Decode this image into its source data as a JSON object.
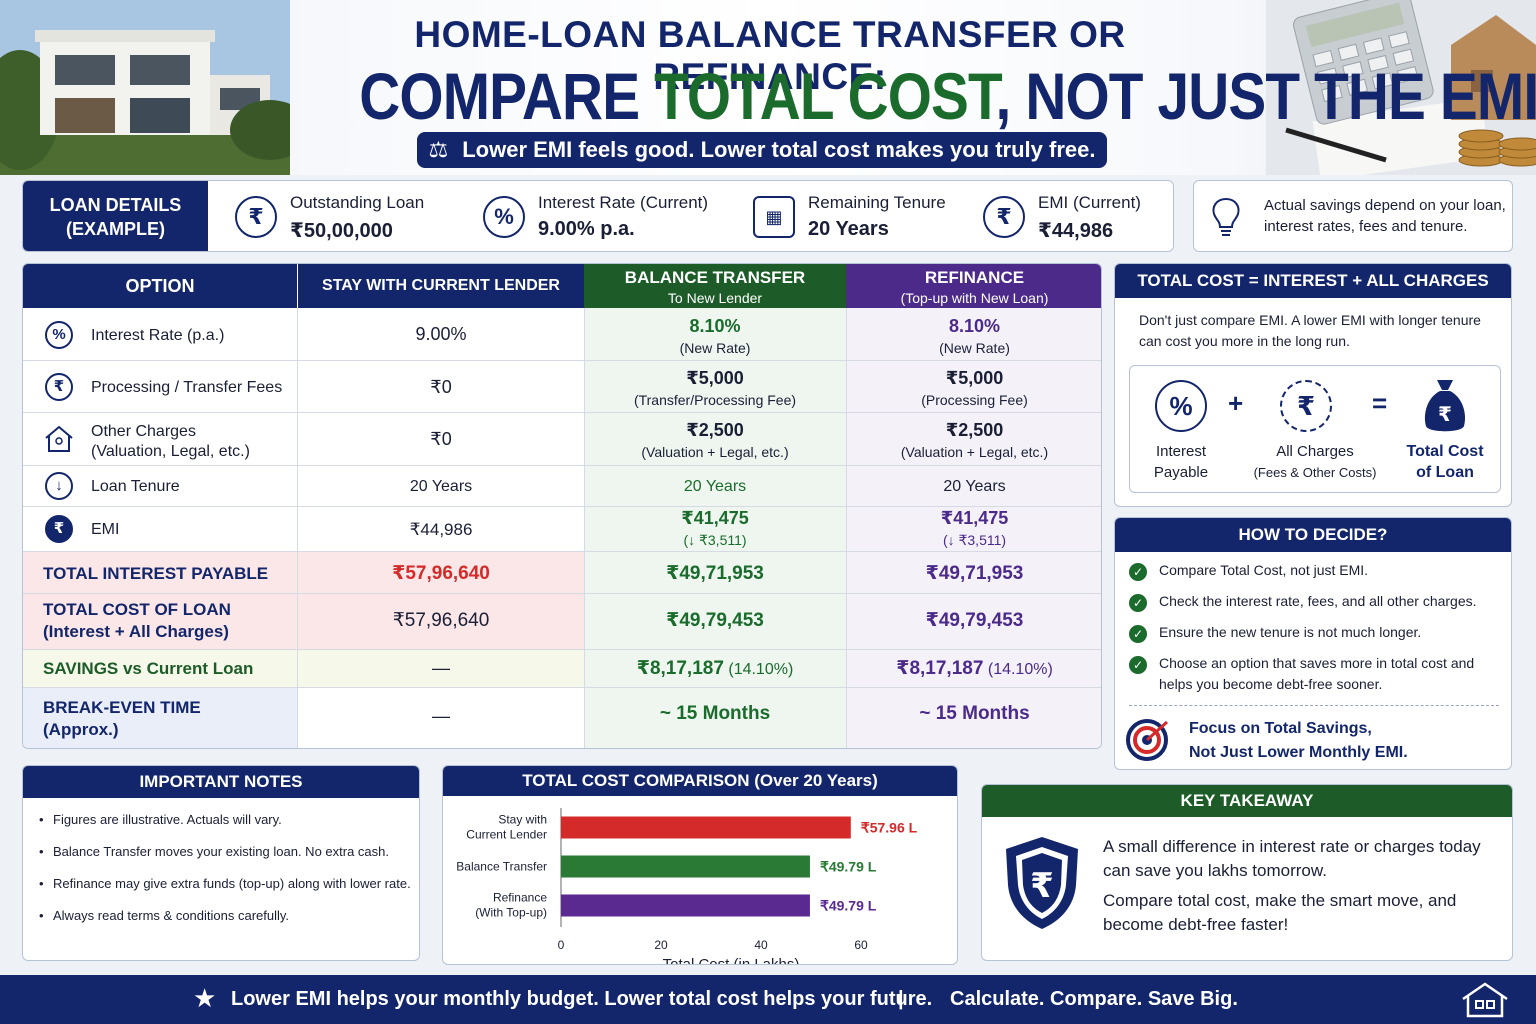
{
  "header": {
    "title_line1": "HOME-LOAN BALANCE TRANSFER OR REFINANCE:",
    "title_line2_a": "COMPARE ",
    "title_line2_b": "TOTAL COST",
    "title_line2_c": ", NOT JUST THE EMI",
    "tagline": "Lower EMI feels good. Lower total cost makes you truly free."
  },
  "loan_details": {
    "label": "LOAN DETAILS (EXAMPLE)",
    "items": [
      {
        "icon": "rupee-icon",
        "label": "Outstanding Loan",
        "value": "₹50,00,000"
      },
      {
        "icon": "percent-icon",
        "label": "Interest Rate (Current)",
        "value": "9.00% p.a."
      },
      {
        "icon": "calendar-icon",
        "label": "Remaining Tenure",
        "value": "20 Years"
      },
      {
        "icon": "rupee-clock-icon",
        "label": "EMI (Current)",
        "value": "₹44,986"
      }
    ],
    "tip": "Actual savings depend on your loan, interest rates, fees and tenure."
  },
  "table": {
    "headers": {
      "option": "OPTION",
      "stay": "STAY WITH CURRENT LENDER",
      "bt_title": "BALANCE TRANSFER",
      "bt_sub": "To New Lender",
      "rf_title": "REFINANCE",
      "rf_sub": "(Top-up with New Loan)"
    },
    "rows": [
      {
        "label": "Interest Rate (p.a.)",
        "stay": "9.00%",
        "bt": "8.10%",
        "bt_sub": "(New Rate)",
        "rf": "8.10%",
        "rf_sub": "(New Rate)"
      },
      {
        "label": "Processing / Transfer Fees",
        "stay": "₹0",
        "bt": "₹5,000",
        "bt_sub": "(Transfer/Processing Fee)",
        "rf": "₹5,000",
        "rf_sub": "(Processing Fee)"
      },
      {
        "label": "Other Charges",
        "label2": "(Valuation, Legal, etc.)",
        "stay": "₹0",
        "bt": "₹2,500",
        "bt_sub": "(Valuation + Legal, etc.)",
        "rf": "₹2,500",
        "rf_sub": "(Valuation + Legal, etc.)"
      },
      {
        "label": "Loan Tenure",
        "stay": "20 Years",
        "bt": "20 Years",
        "rf": "20 Years"
      },
      {
        "label": "EMI",
        "stay": "₹44,986",
        "bt": "₹41,475",
        "bt_sub": "(↓ ₹3,511)",
        "rf": "₹41,475",
        "rf_sub": "(↓ ₹3,511)"
      }
    ],
    "total_interest": {
      "label": "TOTAL INTEREST PAYABLE",
      "stay": "₹57,96,640",
      "bt": "₹49,71,953",
      "rf": "₹49,71,953"
    },
    "total_cost": {
      "label": "TOTAL COST OF LOAN",
      "label2": "(Interest + All Charges)",
      "stay": "₹57,96,640",
      "bt": "₹49,79,453",
      "rf": "₹49,79,453"
    },
    "savings": {
      "label": "SAVINGS vs Current Loan",
      "stay": "—",
      "bt": "₹8,17,187",
      "bt_pct": "(14.10%)",
      "rf": "₹8,17,187",
      "rf_pct": "(14.10%)"
    },
    "breakeven": {
      "label": "BREAK-EVEN TIME",
      "label2": "(Approx.)",
      "stay": "—",
      "bt": "~ 15 Months",
      "rf": "~ 15 Months"
    }
  },
  "formula": {
    "title": "TOTAL COST = INTEREST + ALL CHARGES",
    "text": "Don't just compare EMI. A lower EMI with longer tenure can cost you more in the long run.",
    "plus": "+",
    "equals": "=",
    "interest_l1": "Interest",
    "interest_l2": "Payable",
    "charges_l1": "All Charges",
    "charges_l2": "(Fees & Other Costs)",
    "total_l1": "Total Cost",
    "total_l2": "of Loan"
  },
  "decide": {
    "title": "HOW TO DECIDE?",
    "items": [
      "Compare Total Cost, not just EMI.",
      "Check the interest rate, fees, and all other charges.",
      "Ensure the new tenure is not much longer.",
      "Choose an option that saves more in total cost and helps you become debt-free sooner."
    ],
    "focus_l1": "Focus on Total Savings,",
    "focus_l2": "Not Just Lower Monthly EMI."
  },
  "notes": {
    "title": "IMPORTANT NOTES",
    "items": [
      "Figures are illustrative. Actuals will vary.",
      "Balance Transfer moves your existing loan. No extra cash.",
      "Refinance may give extra funds (top-up) along with lower rate.",
      "Always read terms & conditions carefully."
    ]
  },
  "chart_data": {
    "type": "bar",
    "orientation": "horizontal",
    "title": "TOTAL COST COMPARISON (Over 20 Years)",
    "xlabel": "Total Cost (in Lakhs)",
    "ylabel": "",
    "xlim": [
      0,
      60
    ],
    "xticks": [
      "0",
      "20",
      "40",
      "60"
    ],
    "categories": [
      {
        "l1": "Stay with",
        "l2": "Current Lender"
      },
      {
        "l1": "Balance Transfer",
        "l2": ""
      },
      {
        "l1": "Refinance",
        "l2": "(With Top-up)"
      }
    ],
    "values": [
      57.96,
      49.79,
      49.79
    ],
    "labels": [
      "₹57.96 L",
      "₹49.79 L",
      "₹49.79 L"
    ],
    "colors": [
      "#d42a2a",
      "#2a7a36",
      "#5a2a91"
    ],
    "grid": false
  },
  "takeaway": {
    "title": "KEY TAKEAWAY",
    "line1": "A small difference in interest rate or charges today can save you lakhs tomorrow.",
    "line2": "Compare total cost, make the smart move, and become debt-free faster!"
  },
  "footer": {
    "left": "Lower EMI helps your monthly budget. Lower total cost helps your future.",
    "divider": "|",
    "right": "Calculate. Compare. Save Big."
  },
  "colors": {
    "navy": "#13266b",
    "green": "#1a6b2c",
    "purple": "#4b2a8a",
    "red": "#d42a2a"
  }
}
